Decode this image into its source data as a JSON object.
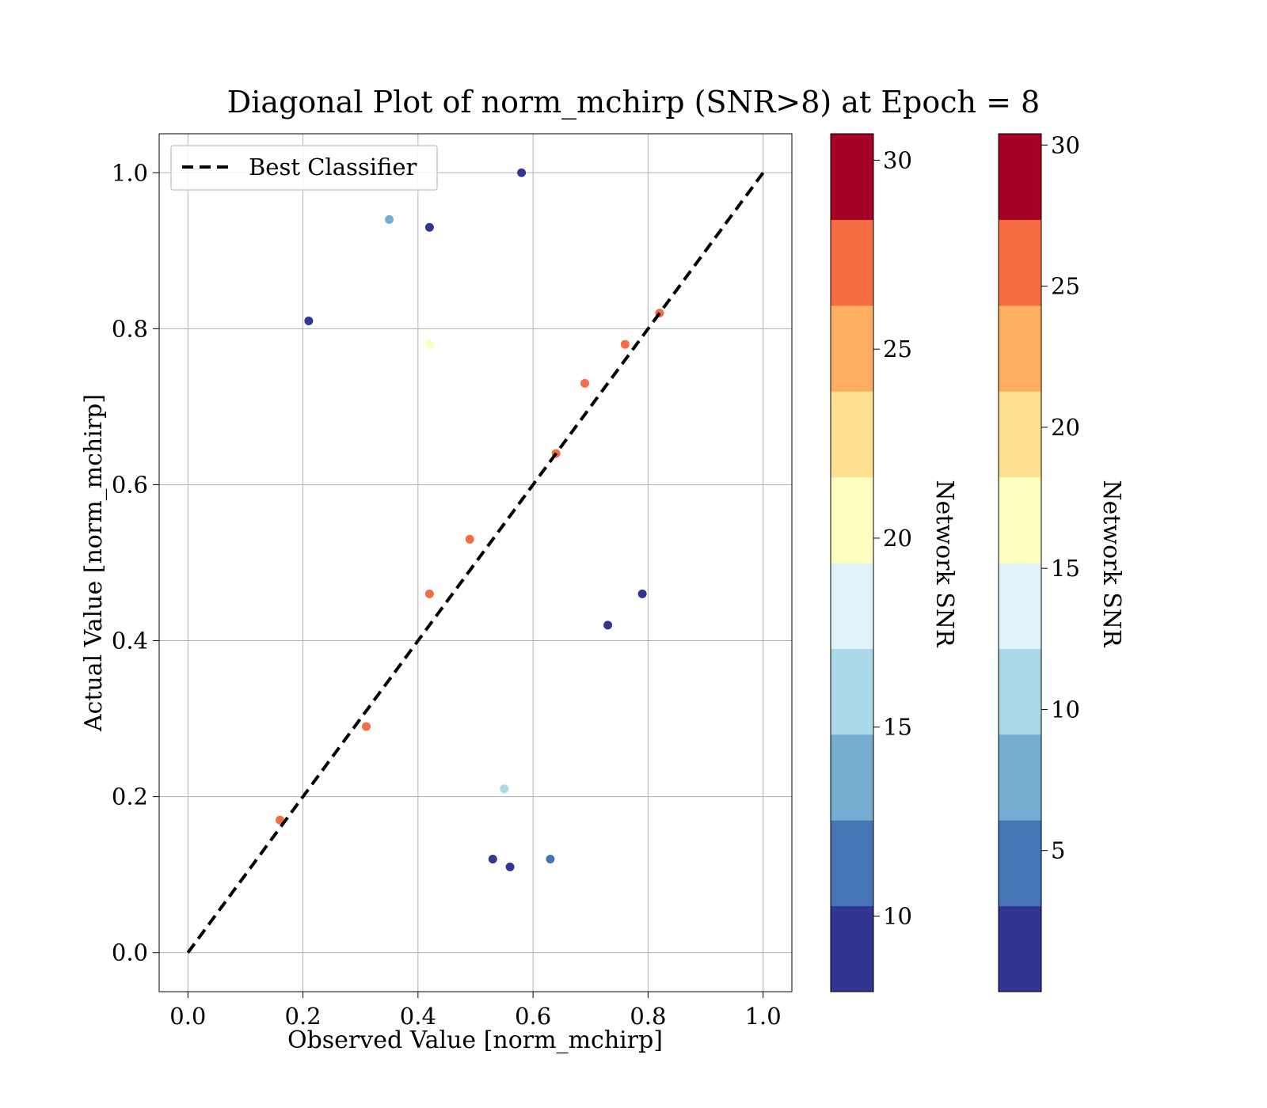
{
  "chart_data": {
    "type": "scatter",
    "title": "Diagonal Plot of norm_mchirp (SNR>8) at Epoch = 8",
    "xlabel": "Observed Value [norm_mchirp]",
    "ylabel": "Actual Value [norm_mchirp]",
    "xlim": [
      -0.05,
      1.05
    ],
    "ylim": [
      -0.05,
      1.05
    ],
    "x_ticks": [
      "0.0",
      "0.2",
      "0.4",
      "0.6",
      "0.8",
      "1.0"
    ],
    "y_ticks": [
      "0.0",
      "0.2",
      "0.4",
      "0.6",
      "0.8",
      "1.0"
    ],
    "grid": true,
    "legend": {
      "position": "top-left",
      "entries": [
        "Best Classifier"
      ]
    },
    "reference_line": {
      "label": "Best Classifier",
      "x": [
        0,
        1
      ],
      "y": [
        0,
        1
      ],
      "style": "dashed",
      "color": "#000000"
    },
    "series": [
      {
        "name": "",
        "color_by": "Network SNR",
        "points": [
          {
            "x": 0.35,
            "y": 0.94,
            "snr": 14
          },
          {
            "x": 0.58,
            "y": 1.0,
            "snr": 9
          },
          {
            "x": 0.42,
            "y": 0.93,
            "snr": 9
          },
          {
            "x": 0.21,
            "y": 0.81,
            "snr": 9
          },
          {
            "x": 0.42,
            "y": 0.78,
            "snr": 20
          },
          {
            "x": 0.79,
            "y": 0.46,
            "snr": 9
          },
          {
            "x": 0.73,
            "y": 0.42,
            "snr": 9
          },
          {
            "x": 0.63,
            "y": 0.12,
            "snr": 11
          },
          {
            "x": 0.56,
            "y": 0.11,
            "snr": 9
          },
          {
            "x": 0.53,
            "y": 0.12,
            "snr": 9
          },
          {
            "x": 0.55,
            "y": 0.21,
            "snr": 16
          },
          {
            "x": 0.16,
            "y": 0.17,
            "snr": 28
          },
          {
            "x": 0.42,
            "y": 0.46,
            "snr": 28
          },
          {
            "x": 0.49,
            "y": 0.53,
            "snr": 28
          },
          {
            "x": 0.64,
            "y": 0.64,
            "snr": 28
          },
          {
            "x": 0.31,
            "y": 0.29,
            "snr": 27
          },
          {
            "x": 0.69,
            "y": 0.73,
            "snr": 27
          },
          {
            "x": 0.76,
            "y": 0.78,
            "snr": 27
          },
          {
            "x": 0.82,
            "y": 0.82,
            "snr": 27
          }
        ]
      }
    ],
    "colorbars": [
      {
        "label": "Network SNR",
        "range": [
          8,
          30.7
        ],
        "ticks": [
          10,
          15,
          20,
          25,
          30
        ],
        "bins": 10,
        "colors": [
          "#313695",
          "#4575b4",
          "#74add1",
          "#abd9e9",
          "#e0f3f8",
          "#ffffbf",
          "#fee090",
          "#fdae61",
          "#f46d43",
          "#a50026"
        ]
      },
      {
        "label": "Network SNR",
        "range": [
          0,
          30.4
        ],
        "ticks": [
          5,
          10,
          15,
          20,
          25,
          30
        ],
        "bins": 10,
        "colors": [
          "#313695",
          "#4575b4",
          "#74add1",
          "#abd9e9",
          "#e0f3f8",
          "#ffffbf",
          "#fee090",
          "#fdae61",
          "#f46d43",
          "#a50026"
        ]
      }
    ]
  }
}
